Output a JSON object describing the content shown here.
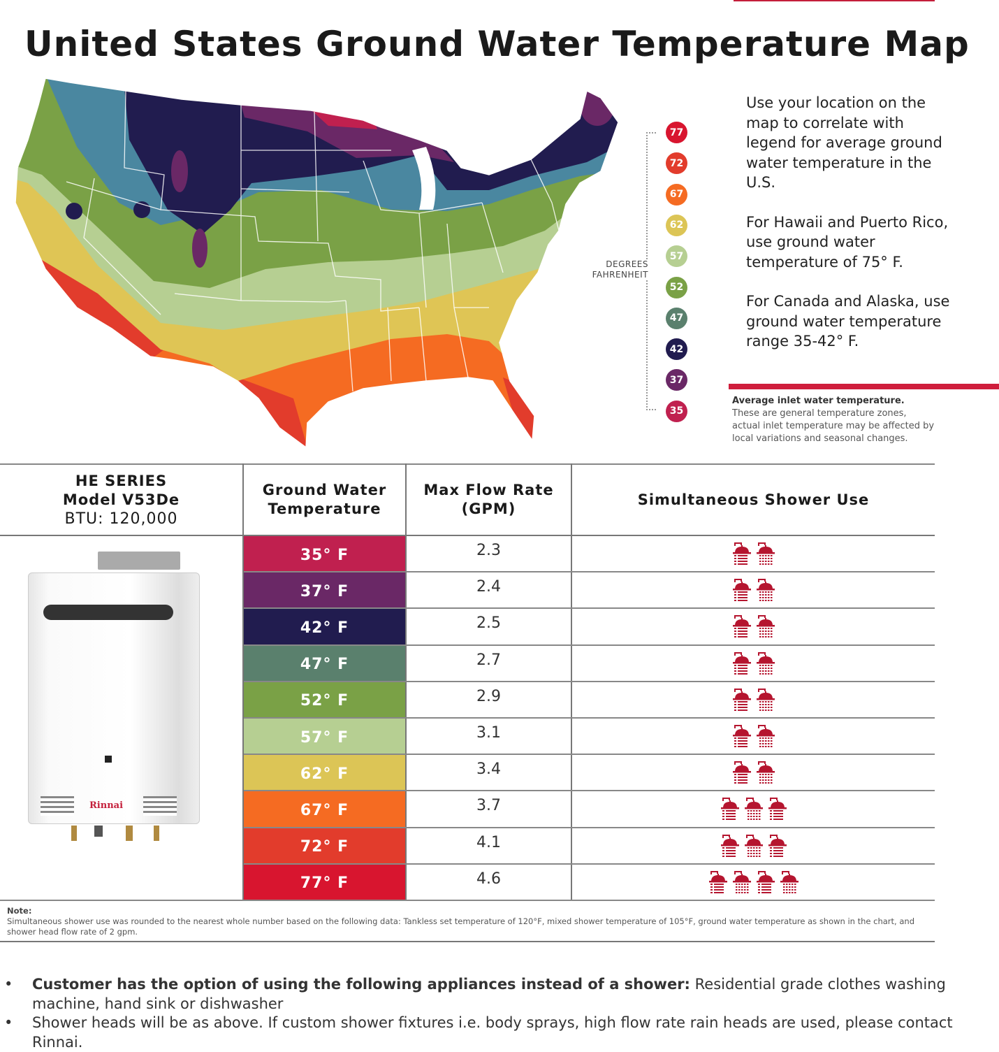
{
  "title": "United States Ground Water Temperature Map",
  "legend": {
    "label_line1": "DEGREES",
    "label_line2": "FAHRENHEIT",
    "items": [
      {
        "value": "77",
        "color": "#d8152f"
      },
      {
        "value": "72",
        "color": "#e23c2c"
      },
      {
        "value": "67",
        "color": "#f56b22"
      },
      {
        "value": "62",
        "color": "#dcc556"
      },
      {
        "value": "57",
        "color": "#b6cf92"
      },
      {
        "value": "52",
        "color": "#7aa146"
      },
      {
        "value": "47",
        "color": "#5a806d"
      },
      {
        "value": "42",
        "color": "#211c4f"
      },
      {
        "value": "37",
        "color": "#6a2866"
      },
      {
        "value": "35",
        "color": "#c0204f"
      }
    ]
  },
  "info": {
    "p1": "Use your location on the map to correlate with legend for average ground water temperature in the U.S.",
    "p2": "For Hawaii and Puerto Rico, use ground water temperature of 75° F.",
    "p3": "For Canada and Alaska, use ground water temperature range 35-42° F."
  },
  "avg_note": {
    "heading": "Average inlet water temperature.",
    "body": "These are general temperature zones, actual inlet temperature may be affected by local variations and seasonal changes."
  },
  "table": {
    "model": {
      "series": "HE SERIES",
      "model": "Model V53De",
      "btu": "BTU: 120,000",
      "logo": "Rinnai"
    },
    "headers": {
      "temp": "Ground Water Temperature",
      "flow": "Max Flow Rate (GPM)",
      "showers": "Simultaneous Shower Use"
    },
    "rows": [
      {
        "temp": "35° F",
        "color": "#c0204f",
        "flow": "2.3",
        "showers": 2
      },
      {
        "temp": "37° F",
        "color": "#6a2866",
        "flow": "2.4",
        "showers": 2
      },
      {
        "temp": "42° F",
        "color": "#211c4f",
        "flow": "2.5",
        "showers": 2
      },
      {
        "temp": "47° F",
        "color": "#5a806d",
        "flow": "2.7",
        "showers": 2
      },
      {
        "temp": "52° F",
        "color": "#7aa146",
        "flow": "2.9",
        "showers": 2
      },
      {
        "temp": "57° F",
        "color": "#b6cf92",
        "flow": "3.1",
        "showers": 2
      },
      {
        "temp": "62° F",
        "color": "#dcc556",
        "flow": "3.4",
        "showers": 2
      },
      {
        "temp": "67° F",
        "color": "#f56b22",
        "flow": "3.7",
        "showers": 3
      },
      {
        "temp": "72° F",
        "color": "#e23c2c",
        "flow": "4.1",
        "showers": 3
      },
      {
        "temp": "77° F",
        "color": "#d8152f",
        "flow": "4.6",
        "showers": 4
      }
    ],
    "shower_icon": "shower-head-icon",
    "shower_color": "#b5152f"
  },
  "note": {
    "label": "Note:",
    "text": "Simultaneous shower use was rounded to the nearest whole number based on the following data: Tankless set temperature of 120°F, mixed shower temperature of 105°F, ground water temperature as shown in the chart, and shower head flow rate of 2 gpm."
  },
  "bullets": [
    {
      "bold": "Customer has the option of using the following appliances instead of a shower:",
      "text": " Residential grade clothes washing machine, hand sink or dishwasher"
    },
    {
      "bold": "",
      "text": "Shower heads will be as above. If custom shower fixtures  i.e. body sprays, high flow rate rain heads are used, please contact Rinnai."
    }
  ],
  "bullet_char": "•",
  "accent": "#cf1e3c"
}
